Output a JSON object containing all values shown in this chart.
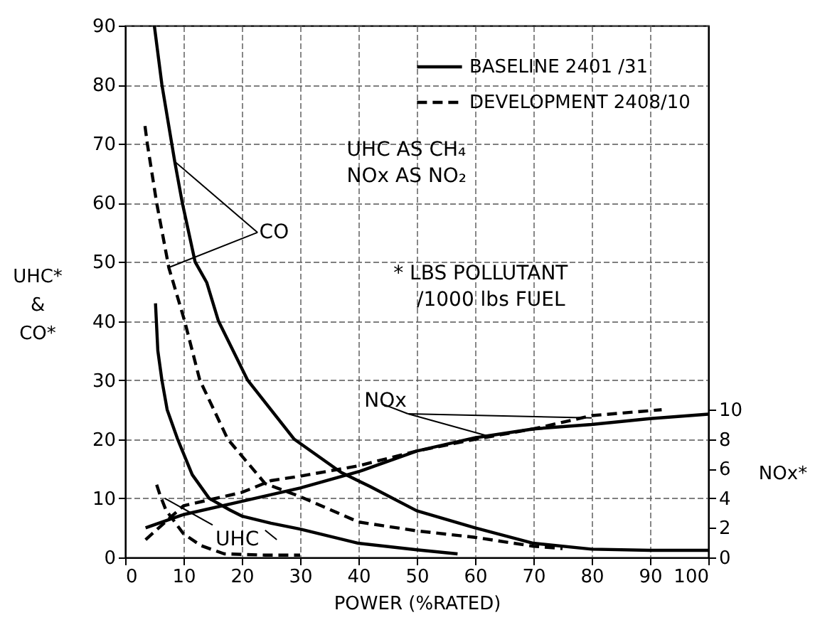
{
  "chart_data": {
    "type": "line",
    "xlabel": "POWER (%RATED)",
    "ylabel": "UHC* & CO*",
    "y2label": "NOx*",
    "annotations": [
      {
        "text": "CO",
        "x": 8.5,
        "y": 67
      },
      {
        "text": "UHC",
        "x": 6.8,
        "y": 10
      },
      {
        "text": "NOx",
        "x": 62,
        "y": 20.6
      },
      "UHC AS CH₄",
      "NOx AS NO₂",
      "* LBS POLLUTANT",
      "/1000 lbs FUEL"
    ],
    "xlim": [
      0,
      100
    ],
    "xticks": [
      0,
      10,
      20,
      30,
      40,
      50,
      60,
      70,
      80,
      90,
      100
    ],
    "ylim": [
      0,
      90
    ],
    "yticks": [
      0,
      10,
      20,
      30,
      40,
      50,
      60,
      70,
      80,
      90
    ],
    "y2lim": [
      0,
      36
    ],
    "y2ticks": [
      0,
      2,
      4,
      6,
      8,
      10
    ],
    "grid": true,
    "legend": "top right",
    "series": [
      {
        "name": "BASELINE 2401 /31",
        "color": "#000000",
        "line_style": "solid",
        "x": [
          5,
          6.3,
          8.5,
          9.8,
          12,
          14,
          16,
          21,
          29,
          37,
          42,
          50,
          60,
          70,
          80,
          90,
          100
        ],
        "values": [
          90,
          80,
          67,
          60,
          50,
          46.5,
          40,
          30,
          20,
          14.4,
          12,
          7.9,
          5,
          2.4,
          1.4,
          1.2,
          1.2
        ]
      },
      {
        "name": "DEVELOPMENT 2408/10",
        "color": "#000000",
        "line_style": "dashed",
        "x": [
          3.4,
          3.8,
          5.4,
          7.5,
          10.2,
          12.8,
          17.6,
          24,
          30,
          40,
          50,
          60,
          70,
          75
        ],
        "values": [
          73,
          70,
          60,
          49,
          40,
          30,
          20,
          12.5,
          10.3,
          6,
          4.5,
          3.4,
          1.9,
          1.5
        ]
      },
      {
        "color": "#000000",
        "line_style": "solid",
        "x": [
          5.2,
          5.6,
          6.3,
          7.2,
          9,
          11.5,
          14.4,
          18,
          20,
          25,
          30,
          40,
          50,
          57
        ],
        "values": [
          43,
          35,
          30,
          25,
          20,
          14,
          10,
          8,
          7,
          5.8,
          4.8,
          2.4,
          1.3,
          0.6
        ]
      },
      {
        "color": "#000000",
        "line_style": "dashed",
        "x": [
          5.4,
          6,
          7,
          8.5,
          10,
          13,
          17,
          24,
          30
        ],
        "values": [
          12.3,
          10.5,
          8,
          6,
          4,
          2,
          0.6,
          0.4,
          0.4
        ]
      },
      {
        "color": "#000000",
        "line_style": "solid",
        "axis": "y2",
        "x": [
          3.5,
          10,
          20,
          30,
          40,
          50,
          60,
          70,
          80,
          90,
          100
        ],
        "values": [
          2.0,
          2.9,
          3.8,
          4.7,
          5.8,
          7.2,
          8.1,
          8.7,
          9.0,
          9.4,
          9.7
        ]
      },
      {
        "color": "#000000",
        "line_style": "dashed",
        "axis": "y2",
        "x": [
          3.5,
          10,
          20,
          25,
          30,
          40,
          50,
          60,
          70,
          80,
          92
        ],
        "values": [
          1.2,
          3.5,
          4.4,
          5.2,
          5.5,
          6.2,
          7.2,
          8.0,
          8.7,
          9.6,
          10.0
        ]
      }
    ]
  }
}
